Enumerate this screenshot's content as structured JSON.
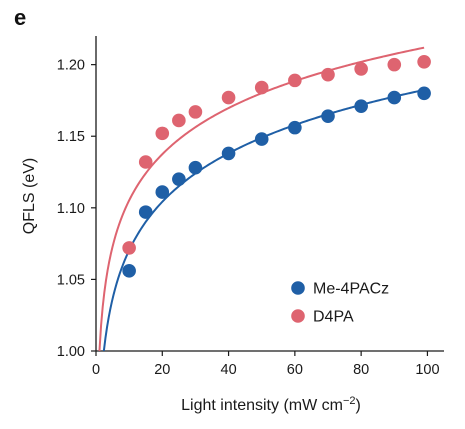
{
  "panel_label": "e",
  "colors": {
    "Me-4PACz": "#1f5fa6",
    "D4PA": "#de6470",
    "axis": "#1a1a1a"
  },
  "chart_data": {
    "type": "scatter",
    "xlabel": "Light intensity (mW cm",
    "xlabel_sup": "−2",
    "xlabel_end": ")",
    "ylabel": "QFLS (eV)",
    "xlim": [
      0,
      105
    ],
    "ylim": [
      1.0,
      1.22
    ],
    "x_ticks": [
      0,
      20,
      40,
      60,
      80,
      100
    ],
    "y_ticks": [
      "1.00",
      "1.05",
      "1.10",
      "1.15",
      "1.20"
    ],
    "legend_position": "lower-right",
    "fit_lines": true,
    "grid": false,
    "series": [
      {
        "name": "Me-4PACz",
        "x": [
          10,
          15,
          20,
          25,
          30,
          40,
          50,
          60,
          70,
          80,
          90,
          99
        ],
        "y": [
          1.056,
          1.097,
          1.111,
          1.12,
          1.128,
          1.138,
          1.148,
          1.156,
          1.164,
          1.171,
          1.177,
          1.18
        ]
      },
      {
        "name": "D4PA",
        "x": [
          10,
          15,
          20,
          25,
          30,
          40,
          50,
          60,
          70,
          80,
          90,
          99
        ],
        "y": [
          1.072,
          1.132,
          1.152,
          1.161,
          1.167,
          1.177,
          1.184,
          1.189,
          1.193,
          1.197,
          1.2,
          1.202
        ]
      }
    ]
  }
}
